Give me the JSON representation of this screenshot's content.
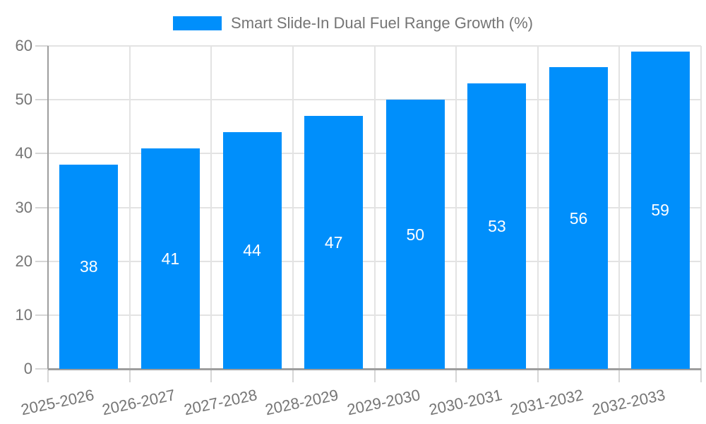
{
  "chart_data": {
    "type": "bar",
    "title": "Smart Slide-In Dual Fuel Range Growth (%)",
    "categories": [
      "2025-2026",
      "2026-2027",
      "2027-2028",
      "2028-2029",
      "2029-2030",
      "2030-2031",
      "2031-2032",
      "2032-2033"
    ],
    "values": [
      38,
      41,
      44,
      47,
      50,
      53,
      56,
      59
    ],
    "value_labels": [
      "38",
      "41",
      "44",
      "47",
      "50",
      "53",
      "56",
      "59"
    ],
    "xlabel": "",
    "ylabel": "",
    "ylim": [
      0,
      60
    ],
    "yticks": [
      0,
      10,
      20,
      30,
      40,
      50,
      60
    ],
    "ytick_labels": [
      "0",
      "10",
      "20",
      "30",
      "40",
      "50",
      "60"
    ],
    "grid": true,
    "legend_position": "top",
    "bar_color": "#008FFB",
    "value_label_color": "#ffffff",
    "axis_text_color": "#757575"
  }
}
